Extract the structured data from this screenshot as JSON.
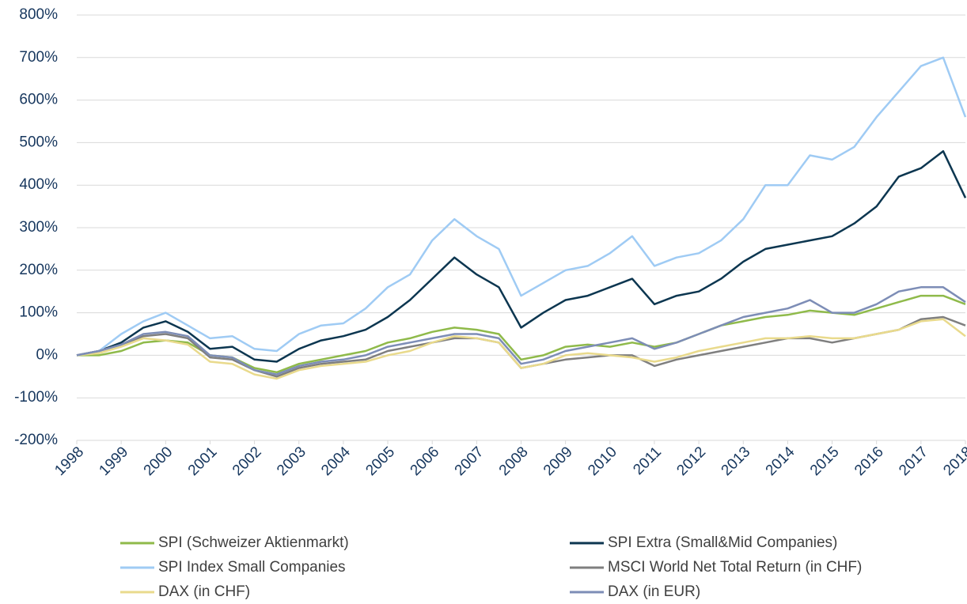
{
  "chart_data": {
    "type": "line",
    "x": [
      1998,
      1998.5,
      1999,
      1999.5,
      2000,
      2000.5,
      2001,
      2001.5,
      2002,
      2002.5,
      2003,
      2003.5,
      2004,
      2004.5,
      2005,
      2005.5,
      2006,
      2006.5,
      2007,
      2007.5,
      2008,
      2008.5,
      2009,
      2009.5,
      2010,
      2010.5,
      2011,
      2011.5,
      2012,
      2012.5,
      2013,
      2013.5,
      2014,
      2014.5,
      2015,
      2015.5,
      2016,
      2016.5,
      2017,
      2017.5,
      2018
    ],
    "xlim": [
      1998,
      2018
    ],
    "xticks": [
      1998,
      1999,
      2000,
      2001,
      2002,
      2003,
      2004,
      2005,
      2006,
      2007,
      2008,
      2009,
      2010,
      2011,
      2012,
      2013,
      2014,
      2015,
      2016,
      2017,
      2018
    ],
    "ylim": [
      -200,
      800
    ],
    "yticks": [
      {
        "value": -200,
        "label": "-200%"
      },
      {
        "value": -100,
        "label": "-100%"
      },
      {
        "value": 0,
        "label": "0%"
      },
      {
        "value": 100,
        "label": "100%"
      },
      {
        "value": 200,
        "label": "200%"
      },
      {
        "value": 300,
        "label": "300%"
      },
      {
        "value": 400,
        "label": "400%"
      },
      {
        "value": 500,
        "label": "500%"
      },
      {
        "value": 600,
        "label": "600%"
      },
      {
        "value": 700,
        "label": "700%"
      },
      {
        "value": 800,
        "label": "800%"
      }
    ],
    "grid": true,
    "series": [
      {
        "name": "SPI (Schweizer Aktienmarkt)",
        "color": "#8fba4a",
        "values": [
          0,
          0,
          10,
          30,
          35,
          30,
          0,
          -5,
          -30,
          -40,
          -20,
          -10,
          0,
          10,
          30,
          40,
          55,
          65,
          60,
          50,
          -10,
          0,
          20,
          25,
          20,
          30,
          20,
          30,
          50,
          70,
          80,
          90,
          95,
          105,
          100,
          95,
          110,
          125,
          140,
          140,
          120
        ]
      },
      {
        "name": "SPI Extra (Small&Mid Companies)",
        "color": "#0c3650",
        "values": [
          0,
          10,
          30,
          65,
          80,
          55,
          15,
          20,
          -10,
          -15,
          15,
          35,
          45,
          60,
          90,
          130,
          180,
          230,
          190,
          160,
          65,
          100,
          130,
          140,
          160,
          180,
          120,
          140,
          150,
          180,
          220,
          250,
          260,
          270,
          280,
          310,
          350,
          420,
          440,
          480,
          370
        ]
      },
      {
        "name": "SPI Index Small Companies",
        "color": "#9fcbf4",
        "values": [
          0,
          10,
          50,
          80,
          100,
          70,
          40,
          45,
          15,
          10,
          50,
          70,
          75,
          110,
          160,
          190,
          270,
          320,
          280,
          250,
          140,
          170,
          200,
          210,
          240,
          280,
          210,
          230,
          240,
          270,
          320,
          400,
          400,
          470,
          460,
          490,
          560,
          620,
          680,
          700,
          560
        ]
      },
      {
        "name": "MSCI World Net Total Return (in CHF)",
        "color": "#7f7f7f",
        "values": [
          0,
          10,
          25,
          45,
          50,
          40,
          -5,
          -10,
          -35,
          -50,
          -30,
          -20,
          -15,
          -10,
          10,
          20,
          30,
          40,
          40,
          30,
          -30,
          -20,
          -10,
          -5,
          0,
          0,
          -25,
          -10,
          0,
          10,
          20,
          30,
          40,
          40,
          30,
          40,
          50,
          60,
          85,
          90,
          70
        ]
      },
      {
        "name": "DAX (in CHF)",
        "color": "#e9da8c",
        "values": [
          0,
          5,
          20,
          40,
          35,
          25,
          -15,
          -20,
          -45,
          -55,
          -35,
          -25,
          -20,
          -15,
          0,
          10,
          30,
          45,
          40,
          30,
          -30,
          -20,
          0,
          5,
          0,
          -5,
          -15,
          -5,
          10,
          20,
          30,
          40,
          40,
          45,
          40,
          40,
          50,
          60,
          80,
          85,
          45
        ]
      },
      {
        "name": "DAX (in EUR)",
        "color": "#7d8db6",
        "values": [
          0,
          10,
          25,
          50,
          55,
          45,
          0,
          -5,
          -35,
          -45,
          -25,
          -15,
          -10,
          0,
          20,
          30,
          40,
          50,
          50,
          40,
          -20,
          -10,
          10,
          20,
          30,
          40,
          15,
          30,
          50,
          70,
          90,
          100,
          110,
          130,
          100,
          100,
          120,
          150,
          160,
          160,
          125
        ]
      }
    ]
  }
}
